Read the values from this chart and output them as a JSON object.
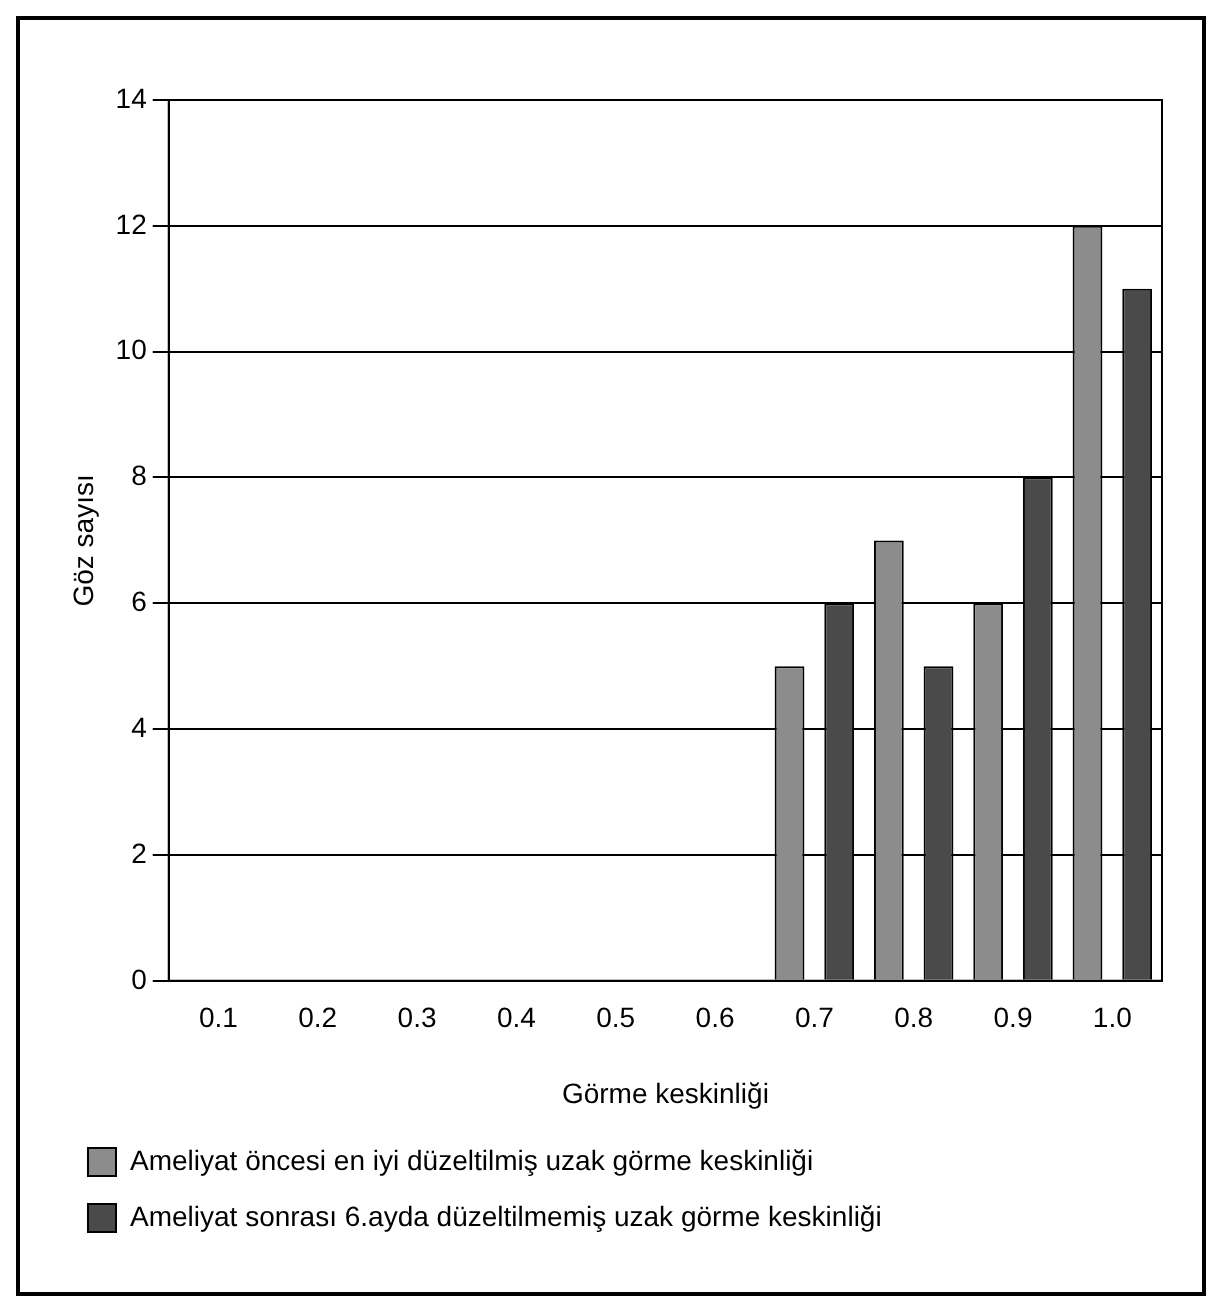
{
  "chart_data": {
    "type": "bar",
    "xlabel": "Görme keskinliği",
    "ylabel": "Göz sayısı",
    "categories": [
      "0.1",
      "0.2",
      "0.3",
      "0.4",
      "0.5",
      "0.6",
      "0.7",
      "0.8",
      "0.9",
      "1.0"
    ],
    "series": [
      {
        "name": "Ameliyat öncesi en iyi düzeltilmiş uzak görme keskinliği",
        "color": "#8c8c8c",
        "values": [
          0,
          0,
          0,
          0,
          0,
          0,
          5,
          7,
          6,
          12
        ]
      },
      {
        "name": "Ameliyat sonrası 6.ayda düzeltilmemiş uzak görme keskinliği",
        "color": "#4a4a4a",
        "values": [
          0,
          0,
          0,
          0,
          0,
          0,
          6,
          5,
          8,
          11
        ]
      }
    ],
    "ylim": [
      0,
      14
    ],
    "yticks": [
      0,
      2,
      4,
      6,
      8,
      10,
      12,
      14
    ],
    "grid": "y",
    "legend": "bottom"
  }
}
